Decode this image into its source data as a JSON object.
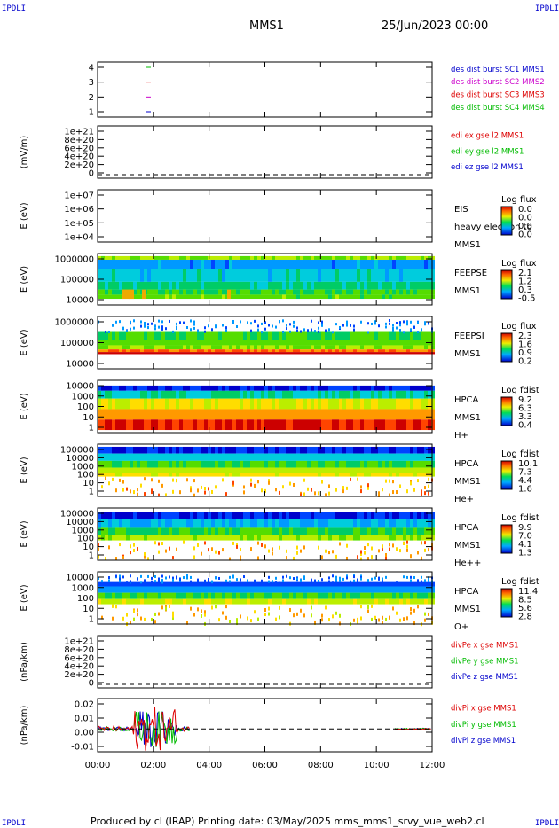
{
  "header": {
    "corner_label": "IPDLI",
    "title": "MMS1",
    "datetime": "25/Jun/2023 00:00"
  },
  "footer": {
    "text": "Produced by cl (IRAP)   Printing date: 03/May/2025   mms_mms1_srvy_vue_web2.cl"
  },
  "colors": {
    "blue": "#0000cc",
    "magenta": "#cc00cc",
    "red": "#dd0000",
    "green": "#00bb00"
  },
  "chart_data": [
    {
      "type": "line",
      "id": "burst",
      "yticks": [
        "4",
        "3",
        "2",
        "1"
      ],
      "x": [
        "01:45",
        "01:45",
        "01:45",
        "01:45"
      ],
      "values": [
        4,
        3,
        2,
        1
      ],
      "legend": [
        {
          "text": "des dist burst SC1 MMS1",
          "color": "#0000cc"
        },
        {
          "text": "des dist burst SC2 MMS2",
          "color": "#cc00cc"
        },
        {
          "text": "des dist burst SC3 MMS3",
          "color": "#dd0000"
        },
        {
          "text": "des dist burst SC4 MMS4",
          "color": "#00bb00"
        }
      ]
    },
    {
      "type": "line",
      "id": "edi",
      "ylabel": "(mV/m)",
      "yticks": [
        "1e+21",
        "8e+20",
        "6e+20",
        "4e+20",
        "2e+20",
        "0"
      ],
      "legend": [
        {
          "text": "edi ex gse l2 MMS1",
          "color": "#dd0000"
        },
        {
          "text": "edi ey gse l2 MMS1",
          "color": "#00bb00"
        },
        {
          "text": "edi ez gse l2 MMS1",
          "color": "#0000cc"
        }
      ]
    },
    {
      "type": "heatmap",
      "id": "eis",
      "ylabel": "E (eV)",
      "yticks": [
        "1e+07",
        "1e+06",
        "1e+05",
        "1e+04"
      ],
      "labels": [
        "EIS",
        "heavy electron to",
        "MMS1"
      ],
      "cbar_title": "Log flux",
      "cbar_ticks": [
        "0.0",
        "0.0",
        "0.0",
        "0.0"
      ]
    },
    {
      "type": "heatmap",
      "id": "feepse",
      "ylabel": "E (eV)",
      "yticks": [
        "1000000",
        "100000",
        "10000"
      ],
      "labels": [
        "FEEPSE",
        "MMS1"
      ],
      "cbar_title": "Log flux",
      "cbar_ticks": [
        "2.1",
        "1.2",
        "0.3",
        "-0.5"
      ]
    },
    {
      "type": "heatmap",
      "id": "feepsi",
      "ylabel": "E (eV)",
      "yticks": [
        "1000000",
        "100000",
        "10000"
      ],
      "labels": [
        "FEEPSI",
        "MMS1"
      ],
      "cbar_title": "Log flux",
      "cbar_ticks": [
        "2.3",
        "1.6",
        "0.9",
        "0.2"
      ]
    },
    {
      "type": "heatmap",
      "id": "hpca_h",
      "ylabel": "E (eV)",
      "yticks": [
        "10000",
        "1000",
        "100",
        "10",
        "1"
      ],
      "labels": [
        "HPCA",
        "MMS1",
        "H+"
      ],
      "cbar_title": "Log fdist",
      "cbar_ticks": [
        "9.2",
        "6.3",
        "3.3",
        "0.4"
      ]
    },
    {
      "type": "heatmap",
      "id": "hpca_he",
      "ylabel": "E (eV)",
      "yticks": [
        "100000",
        "10000",
        "1000",
        "100",
        "10",
        "1"
      ],
      "labels": [
        "HPCA",
        "MMS1",
        "He+"
      ],
      "cbar_title": "Log fdist",
      "cbar_ticks": [
        "10.1",
        "7.3",
        "4.4",
        "1.6"
      ]
    },
    {
      "type": "heatmap",
      "id": "hpca_hepp",
      "ylabel": "E (eV)",
      "yticks": [
        "100000",
        "10000",
        "1000",
        "100",
        "10",
        "1"
      ],
      "labels": [
        "HPCA",
        "MMS1",
        "He++"
      ],
      "cbar_title": "Log fdist",
      "cbar_ticks": [
        "9.9",
        "7.0",
        "4.1",
        "1.3"
      ]
    },
    {
      "type": "heatmap",
      "id": "hpca_o",
      "ylabel": "E (eV)",
      "yticks": [
        "10000",
        "1000",
        "100",
        "10",
        "1"
      ],
      "labels": [
        "HPCA",
        "MMS1",
        "O+"
      ],
      "cbar_title": "Log fdist",
      "cbar_ticks": [
        "11.4",
        "8.5",
        "5.6",
        "2.8"
      ]
    },
    {
      "type": "line",
      "id": "divpe",
      "ylabel": "(nPa/km)",
      "yticks": [
        "1e+21",
        "8e+20",
        "6e+20",
        "4e+20",
        "2e+20",
        "0"
      ],
      "legend": [
        {
          "text": "divPe x gse MMS1",
          "color": "#dd0000"
        },
        {
          "text": "divPe y gse MMS1",
          "color": "#00bb00"
        },
        {
          "text": "divPe z gse MMS1",
          "color": "#0000cc"
        }
      ]
    },
    {
      "type": "line",
      "id": "divpi",
      "ylabel": "(nPa/km)",
      "yticks": [
        "0.02",
        "0.01",
        "0.00",
        "-0.01"
      ],
      "ylim": [
        -0.015,
        0.02
      ],
      "legend": [
        {
          "text": "divPi x gse MMS1",
          "color": "#dd0000"
        },
        {
          "text": "divPi y gse MMS1",
          "color": "#00bb00"
        },
        {
          "text": "divPi z gse MMS1",
          "color": "#0000cc"
        }
      ],
      "xticks": [
        "00:00",
        "02:00",
        "04:00",
        "06:00",
        "08:00",
        "10:00",
        "12:00"
      ],
      "xlim": [
        "00:00",
        "12:00"
      ]
    }
  ]
}
